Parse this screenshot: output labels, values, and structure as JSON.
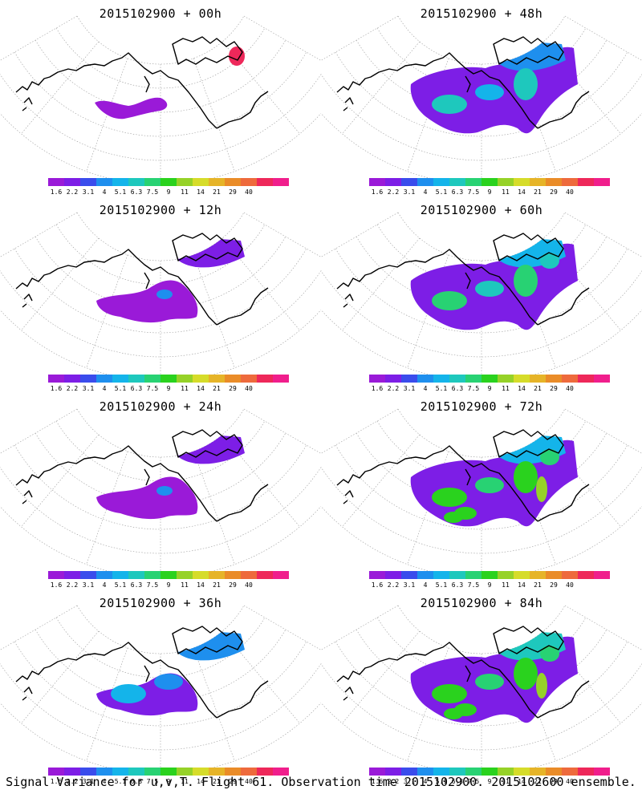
{
  "panels": [
    {
      "title": "2015102900 + 00h",
      "level": 0
    },
    {
      "title": "2015102900 + 48h",
      "level": 3
    },
    {
      "title": "2015102900 + 12h",
      "level": 1
    },
    {
      "title": "2015102900 + 60h",
      "level": 4
    },
    {
      "title": "2015102900 + 24h",
      "level": 1
    },
    {
      "title": "2015102900 + 72h",
      "level": 5
    },
    {
      "title": "2015102900 + 36h",
      "level": 2
    },
    {
      "title": "2015102900 + 84h",
      "level": 6
    }
  ],
  "colorbar": {
    "labels": [
      "1.6",
      "2.2",
      "3.1",
      "4",
      "5.1",
      "6.3",
      "7.5",
      "9",
      "11",
      "14",
      "21",
      "29",
      "40"
    ],
    "colors": [
      "#9a1ad8",
      "#7d1ee6",
      "#3a4cec",
      "#1e8fee",
      "#14b4ea",
      "#1ec8bd",
      "#28d273",
      "#2ad21e",
      "#96d228",
      "#d6dc2a",
      "#e6b428",
      "#ea8c28",
      "#ee6a3c",
      "#ee285a",
      "#f01e8c"
    ]
  },
  "footer": "Signal Variance for u,v,T. Flight 61. Observation time 2015102900. 2015102600 ensemble."
}
